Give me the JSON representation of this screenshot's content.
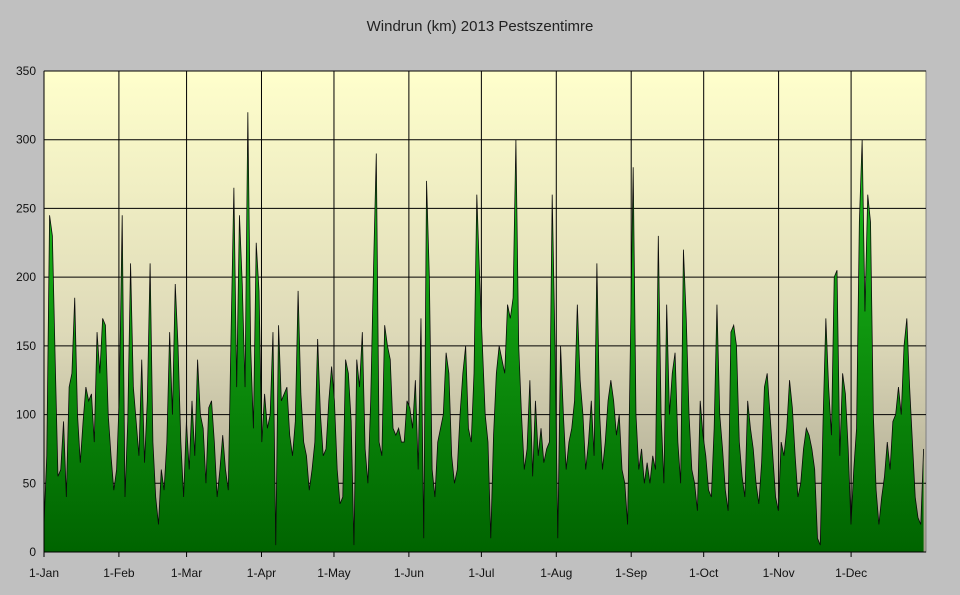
{
  "chart_data": {
    "type": "area",
    "title": "Windrun (km) 2013 Pestszentimre",
    "xlabel": "",
    "ylabel": "",
    "year": 2013,
    "ylim": [
      0,
      350
    ],
    "yticks": [
      "0",
      "50",
      "100",
      "150",
      "200",
      "250",
      "300",
      "350"
    ],
    "xticks": [
      {
        "label": "1-Jan",
        "day": 1
      },
      {
        "label": "1-Feb",
        "day": 32
      },
      {
        "label": "1-Mar",
        "day": 60
      },
      {
        "label": "1-Apr",
        "day": 91
      },
      {
        "label": "1-May",
        "day": 121
      },
      {
        "label": "1-Jun",
        "day": 152
      },
      {
        "label": "1-Jul",
        "day": 182
      },
      {
        "label": "1-Aug",
        "day": 213
      },
      {
        "label": "1-Sep",
        "day": 244
      },
      {
        "label": "1-Oct",
        "day": 274
      },
      {
        "label": "1-Nov",
        "day": 305
      },
      {
        "label": "1-Dec",
        "day": 335
      }
    ],
    "grid": true,
    "legend": "none",
    "colors": {
      "fill_light": "#1ec81e",
      "fill_dark": "#006400",
      "stroke": "#0a0a0a",
      "plot_top": "#ffffcc",
      "plot_bottom": "#a39e8a",
      "background": "#c0c0c0"
    },
    "series": [
      {
        "values": [
          20,
          70,
          245,
          230,
          140,
          55,
          60,
          95,
          40,
          120,
          130,
          185,
          100,
          65,
          95,
          120,
          110,
          115,
          80,
          160,
          130,
          170,
          165,
          100,
          70,
          45,
          60,
          115,
          245,
          40,
          95,
          210,
          120,
          95,
          70,
          140,
          65,
          110,
          210,
          80,
          40,
          20,
          60,
          45,
          80,
          160,
          100,
          195,
          150,
          80,
          40,
          95,
          60,
          110,
          70,
          140,
          100,
          90,
          50,
          105,
          110,
          80,
          40,
          60,
          85,
          60,
          45,
          160,
          265,
          120,
          245,
          195,
          120,
          320,
          150,
          90,
          225,
          190,
          80,
          115,
          90,
          100,
          160,
          5,
          165,
          110,
          115,
          120,
          85,
          70,
          95,
          190,
          115,
          80,
          70,
          45,
          60,
          80,
          155,
          100,
          70,
          75,
          110,
          135,
          110,
          60,
          35,
          40,
          140,
          130,
          95,
          5,
          140,
          120,
          160,
          75,
          50,
          110,
          205,
          290,
          80,
          70,
          165,
          150,
          140,
          90,
          85,
          90,
          80,
          80,
          110,
          105,
          90,
          125,
          60,
          170,
          10,
          270,
          200,
          60,
          40,
          80,
          90,
          100,
          145,
          130,
          70,
          50,
          60,
          100,
          130,
          150,
          90,
          80,
          130,
          260,
          200,
          150,
          100,
          80,
          10,
          85,
          130,
          150,
          140,
          130,
          180,
          170,
          185,
          300,
          150,
          100,
          60,
          75,
          125,
          55,
          110,
          70,
          90,
          65,
          75,
          80,
          260,
          150,
          10,
          150,
          100,
          60,
          80,
          90,
          110,
          180,
          125,
          100,
          60,
          80,
          110,
          70,
          210,
          100,
          60,
          80,
          110,
          125,
          110,
          85,
          100,
          60,
          50,
          20,
          150,
          280,
          100,
          60,
          75,
          50,
          65,
          50,
          70,
          60,
          230,
          100,
          50,
          180,
          100,
          130,
          145,
          80,
          50,
          220,
          170,
          100,
          60,
          50,
          30,
          110,
          85,
          70,
          45,
          40,
          90,
          180,
          100,
          75,
          45,
          30,
          160,
          165,
          150,
          80,
          55,
          40,
          110,
          90,
          75,
          50,
          35,
          65,
          120,
          130,
          100,
          70,
          40,
          30,
          80,
          70,
          90,
          125,
          105,
          70,
          40,
          50,
          75,
          90,
          85,
          75,
          60,
          10,
          5,
          95,
          170,
          120,
          85,
          200,
          205,
          70,
          130,
          115,
          75,
          20,
          60,
          90,
          240,
          300,
          175,
          260,
          240,
          100,
          45,
          20,
          40,
          55,
          80,
          60,
          95,
          100,
          120,
          100,
          150,
          170,
          120,
          80,
          40,
          25,
          20,
          75
        ]
      }
    ]
  }
}
